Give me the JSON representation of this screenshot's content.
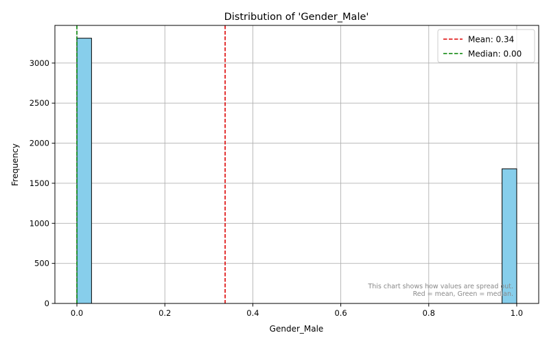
{
  "chart_data": {
    "type": "bar",
    "title": "Distribution of 'Gender_Male'",
    "xlabel": "Gender_Male",
    "ylabel": "Frequency",
    "xlim": [
      -0.05,
      1.05
    ],
    "ylim": [
      0,
      3470
    ],
    "x_ticks": [
      0.0,
      0.2,
      0.4,
      0.6,
      0.8,
      1.0
    ],
    "x_tick_labels": [
      "0.0",
      "0.2",
      "0.4",
      "0.6",
      "0.8",
      "1.0"
    ],
    "y_ticks": [
      0,
      500,
      1000,
      1500,
      2000,
      2500,
      3000
    ],
    "y_tick_labels": [
      "0",
      "500",
      "1000",
      "1500",
      "2000",
      "2500",
      "3000"
    ],
    "grid": true,
    "bar_color": "#87ceeb",
    "bar_edge_color": "#000000",
    "bins": [
      {
        "x0": 0.0,
        "x1": 0.0333,
        "count": 3310
      },
      {
        "x0": 0.9667,
        "x1": 1.0,
        "count": 1680
      }
    ],
    "reference_lines": [
      {
        "name": "Mean: 0.34",
        "value": 0.337,
        "color": "#dd0000",
        "style": "dashed"
      },
      {
        "name": "Median: 0.00",
        "value": 0.0,
        "color": "#008000",
        "style": "dashed"
      }
    ],
    "legend_position": "top-right",
    "annotation": {
      "line1": "This chart shows how values are spread out.",
      "line2": "Red = mean, Green = median.",
      "color": "#888888"
    }
  }
}
